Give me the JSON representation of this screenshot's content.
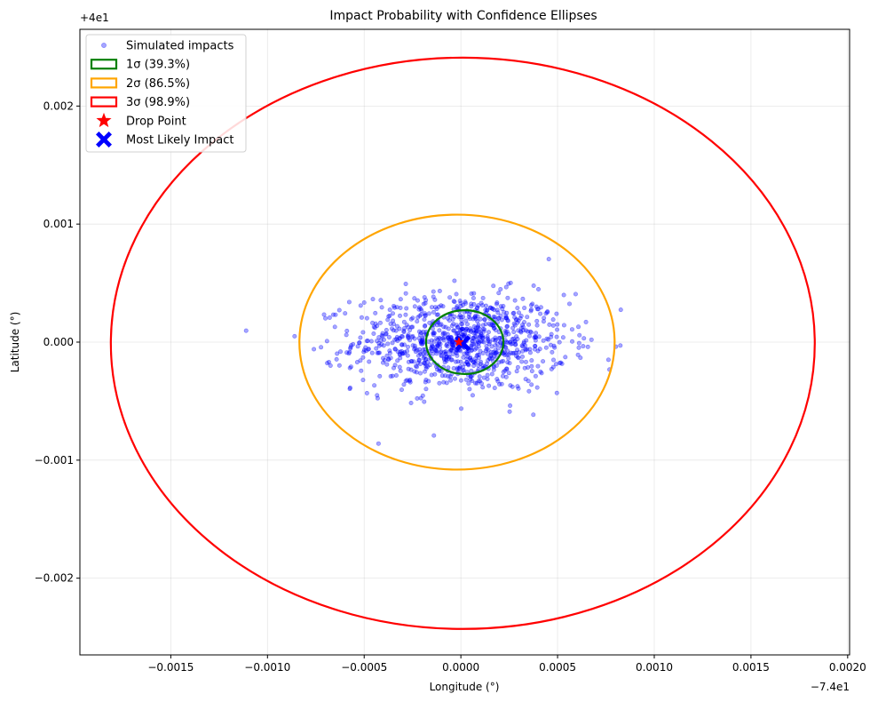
{
  "chart_data": {
    "type": "scatter",
    "title": "Impact Probability with Confidence Ellipses",
    "xlabel": "Longitude (°)",
    "ylabel": "Latitude (°)",
    "x_offset_label": "−7.4e1",
    "y_offset_label": "+4e1",
    "xlim": [
      -0.00197,
      0.00201
    ],
    "ylim": [
      -0.00265,
      0.00265
    ],
    "xticks": [
      -0.0015,
      -0.001,
      -0.0005,
      0,
      0.0005,
      0.001,
      0.0015,
      0.002
    ],
    "xtick_labels": [
      "−0.0015",
      "−0.0010",
      "−0.0005",
      "0.0000",
      "0.0005",
      "0.0010",
      "0.0015",
      "0.0020"
    ],
    "yticks": [
      -0.002,
      -0.001,
      0,
      0.001,
      0.002
    ],
    "ytick_labels": [
      "−0.002",
      "−0.001",
      "0.000",
      "0.001",
      "0.002"
    ],
    "grid": true,
    "legend_position": "upper-left",
    "legend": [
      {
        "label": "Simulated impacts",
        "marker": "dot",
        "color": "#0000ff"
      },
      {
        "label": "1σ (39.3%)",
        "marker": "rect",
        "color": "#008000"
      },
      {
        "label": "2σ (86.5%)",
        "marker": "rect",
        "color": "#ffa500"
      },
      {
        "label": "3σ (98.9%)",
        "marker": "rect",
        "color": "#ff0000"
      },
      {
        "label": "Drop Point",
        "marker": "star",
        "color": "#ff0000"
      },
      {
        "label": "Most Likely Impact",
        "marker": "x",
        "color": "#0000ff"
      }
    ],
    "ellipses": [
      {
        "name": "1σ (39.3%)",
        "color": "#008000",
        "center": [
          2e-05,
          0.0
        ],
        "rx": 0.0002,
        "ry": 0.00027
      },
      {
        "name": "2σ (86.5%)",
        "color": "#ffa500",
        "center": [
          -2e-05,
          0.0
        ],
        "rx": 0.000815,
        "ry": 0.00108
      },
      {
        "name": "3σ (98.9%)",
        "color": "#ff0000",
        "center": [
          1e-05,
          -1e-05
        ],
        "rx": 0.00182,
        "ry": 0.00242
      }
    ],
    "drop_point": [
      -1e-05,
      0.0
    ],
    "most_likely_impact": [
      1e-05,
      -1e-05
    ],
    "impacts": {
      "count": 1000,
      "mean": [
        0.0,
        0.0
      ],
      "std": [
        0.000275,
        0.000205
      ],
      "color": "#0000ff"
    }
  }
}
